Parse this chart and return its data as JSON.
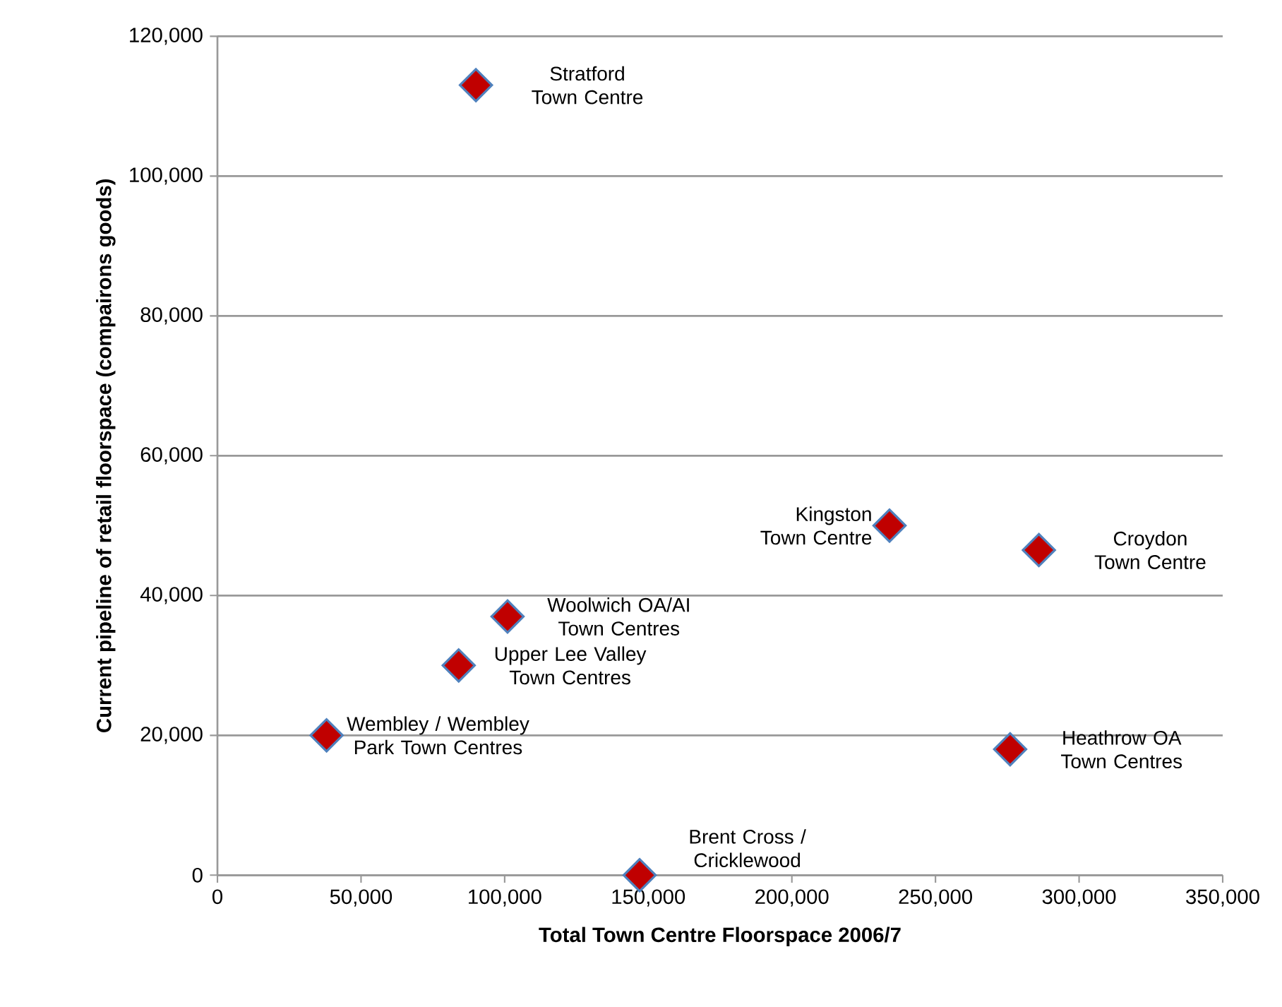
{
  "chart_data": {
    "type": "scatter",
    "xlabel": "Total Town Centre Floorspace 2006/7",
    "ylabel": "Current pipeline of retail floorspace (compairons goods)",
    "x": [
      90000,
      101000,
      84000,
      38000,
      147000,
      234000,
      286000,
      276000
    ],
    "values": [
      113000,
      37000,
      30000,
      20000,
      0,
      50000,
      46500,
      18000
    ],
    "color": "#c00000",
    "marker": "diamond",
    "grid": "y",
    "xlim": [
      0,
      350000
    ],
    "ylim": [
      0,
      120000
    ],
    "xticks": [
      {
        "value": 0,
        "label": "0"
      },
      {
        "value": 50000,
        "label": "50,000"
      },
      {
        "value": 100000,
        "label": "100,000"
      },
      {
        "value": 150000,
        "label": "150,000"
      },
      {
        "value": 200000,
        "label": "200,000"
      },
      {
        "value": 250000,
        "label": "250,000"
      },
      {
        "value": 300000,
        "label": "300,000"
      },
      {
        "value": 350000,
        "label": "350,000"
      }
    ],
    "yticks": [
      {
        "value": 0,
        "label": "0"
      },
      {
        "value": 20000,
        "label": "20,000"
      },
      {
        "value": 40000,
        "label": "40,000"
      },
      {
        "value": 60000,
        "label": "60,000"
      },
      {
        "value": 80000,
        "label": "80,000"
      },
      {
        "value": 100000,
        "label": "100,000"
      },
      {
        "value": 120000,
        "label": "120,000"
      }
    ],
    "annotations": [
      {
        "text": "Stratford Town Centre",
        "x": 90000,
        "y": 113000
      },
      {
        "text": "Woolwich OA/AI Town Centres",
        "x": 101000,
        "y": 37000
      },
      {
        "text": "Upper Lee Valley Town Centres",
        "x": 84000,
        "y": 30000
      },
      {
        "text": "Wembley / Wembley Park Town Centres",
        "x": 38000,
        "y": 20000
      },
      {
        "text": "Brent Cross / Cricklewood",
        "x": 147000,
        "y": 0
      },
      {
        "text": "Kingston Town Centre",
        "x": 234000,
        "y": 50000
      },
      {
        "text": "Croydon Town Centre",
        "x": 286000,
        "y": 46500
      },
      {
        "text": "Heathrow OA Town Centres",
        "x": 276000,
        "y": 18000
      }
    ]
  }
}
